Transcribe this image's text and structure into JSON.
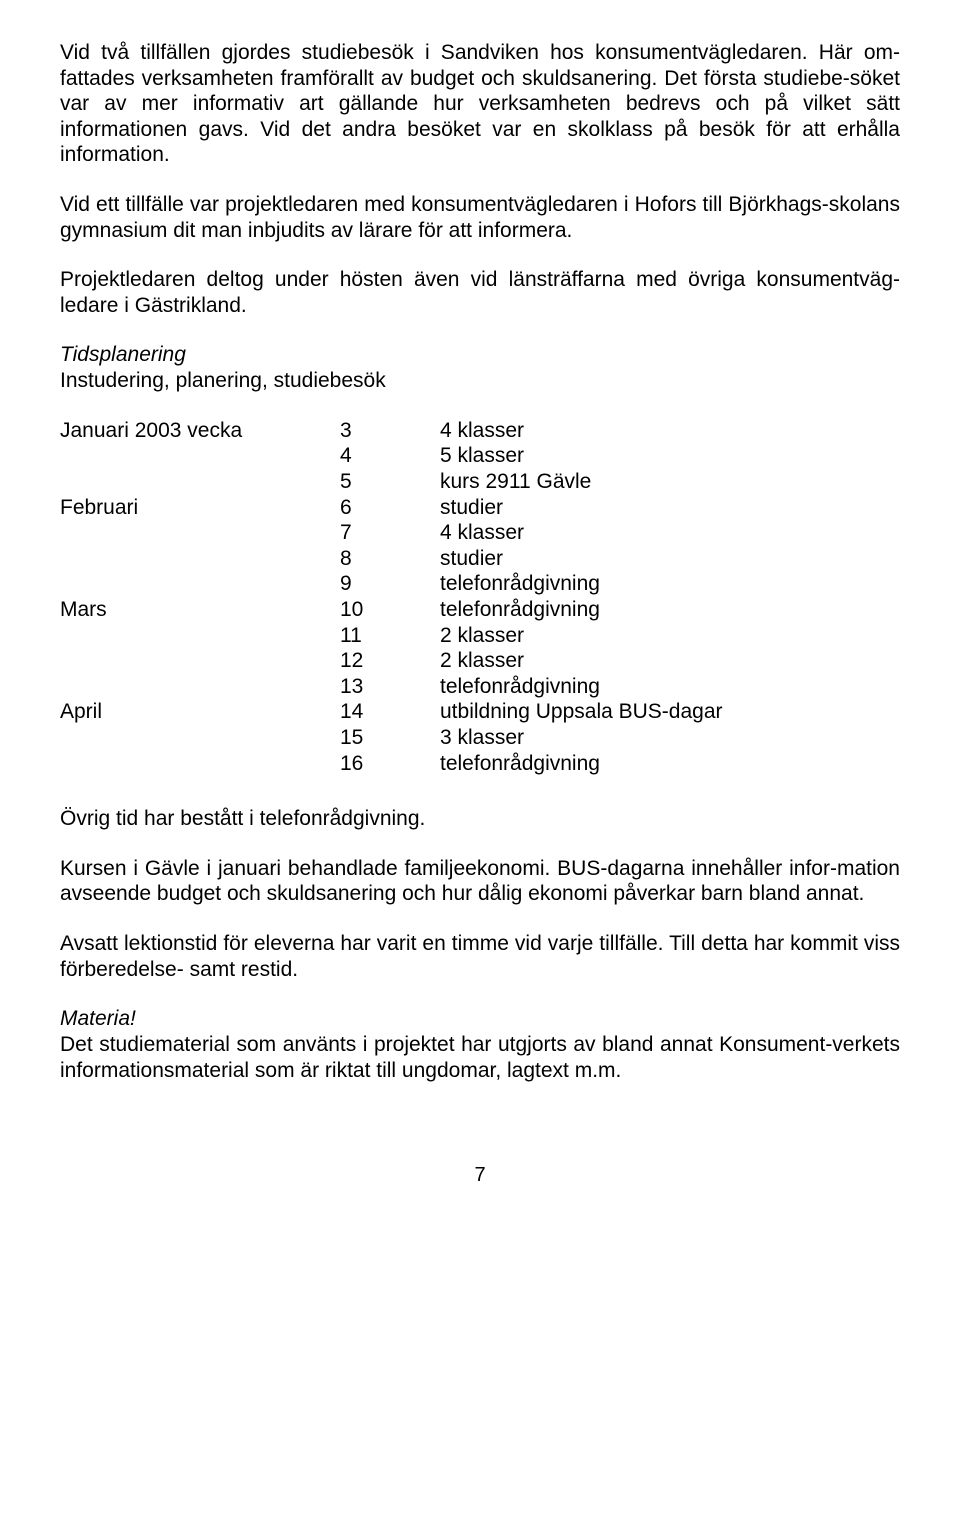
{
  "paragraphs": {
    "p1": "Vid två tillfällen gjordes studiebesök i Sandviken hos konsumentvägledaren. Här om-fattades verksamheten framförallt av budget och skuldsanering. Det första studiebe-söket var av mer informativ art gällande hur verksamheten bedrevs och på vilket sätt informationen gavs. Vid det andra besöket var en skolklass på besök för att erhålla information.",
    "p2": "Vid ett tillfälle var projektledaren med konsumentvägledaren i Hofors till Björkhags-skolans gymnasium dit man inbjudits av lärare för att informera.",
    "p3": "Projektledaren deltog under hösten även vid länsträffarna med övriga konsumentväg-ledare i Gästrikland.",
    "tids_heading": "Tidsplanering",
    "tids_sub": "Instudering, planering, studiebesök",
    "p4": "Övrig tid har bestått i telefonrådgivning.",
    "p5": "Kursen i Gävle i januari behandlade familjeekonomi. BUS-dagarna innehåller infor-mation avseende budget och skuldsanering och hur dålig ekonomi påverkar barn bland annat.",
    "p6": "Avsatt lektionstid för eleverna har varit en timme vid varje tillfälle. Till detta har kommit viss förberedelse- samt restid.",
    "materia_heading": "Materia!",
    "p7": "Det studiematerial som använts i projektet har utgjorts av bland annat Konsument-verkets informationsmaterial som är riktat till ungdomar, lagtext m.m."
  },
  "schedule": [
    {
      "month": "Januari 2003 vecka",
      "week": "3",
      "activity": "4 klasser"
    },
    {
      "month": "",
      "week": "4",
      "activity": "5 klasser"
    },
    {
      "month": "",
      "week": "5",
      "activity": "kurs 2911 Gävle"
    },
    {
      "month": "Februari",
      "week": "6",
      "activity": "studier"
    },
    {
      "month": "",
      "week": "7",
      "activity": "4 klasser"
    },
    {
      "month": "",
      "week": "8",
      "activity": "studier"
    },
    {
      "month": "",
      "week": "9",
      "activity": "telefonrådgivning"
    },
    {
      "month": "Mars",
      "week": "10",
      "activity": "telefonrådgivning"
    },
    {
      "month": "",
      "week": "11",
      "activity": "2 klasser"
    },
    {
      "month": "",
      "week": "12",
      "activity": "2 klasser"
    },
    {
      "month": "",
      "week": "13",
      "activity": "telefonrådgivning"
    },
    {
      "month": "April",
      "week": "14",
      "activity": "utbildning Uppsala BUS-dagar"
    },
    {
      "month": "",
      "week": "15",
      "activity": "3 klasser"
    },
    {
      "month": "",
      "week": "16",
      "activity": "telefonrådgivning"
    }
  ],
  "page_number": "7"
}
